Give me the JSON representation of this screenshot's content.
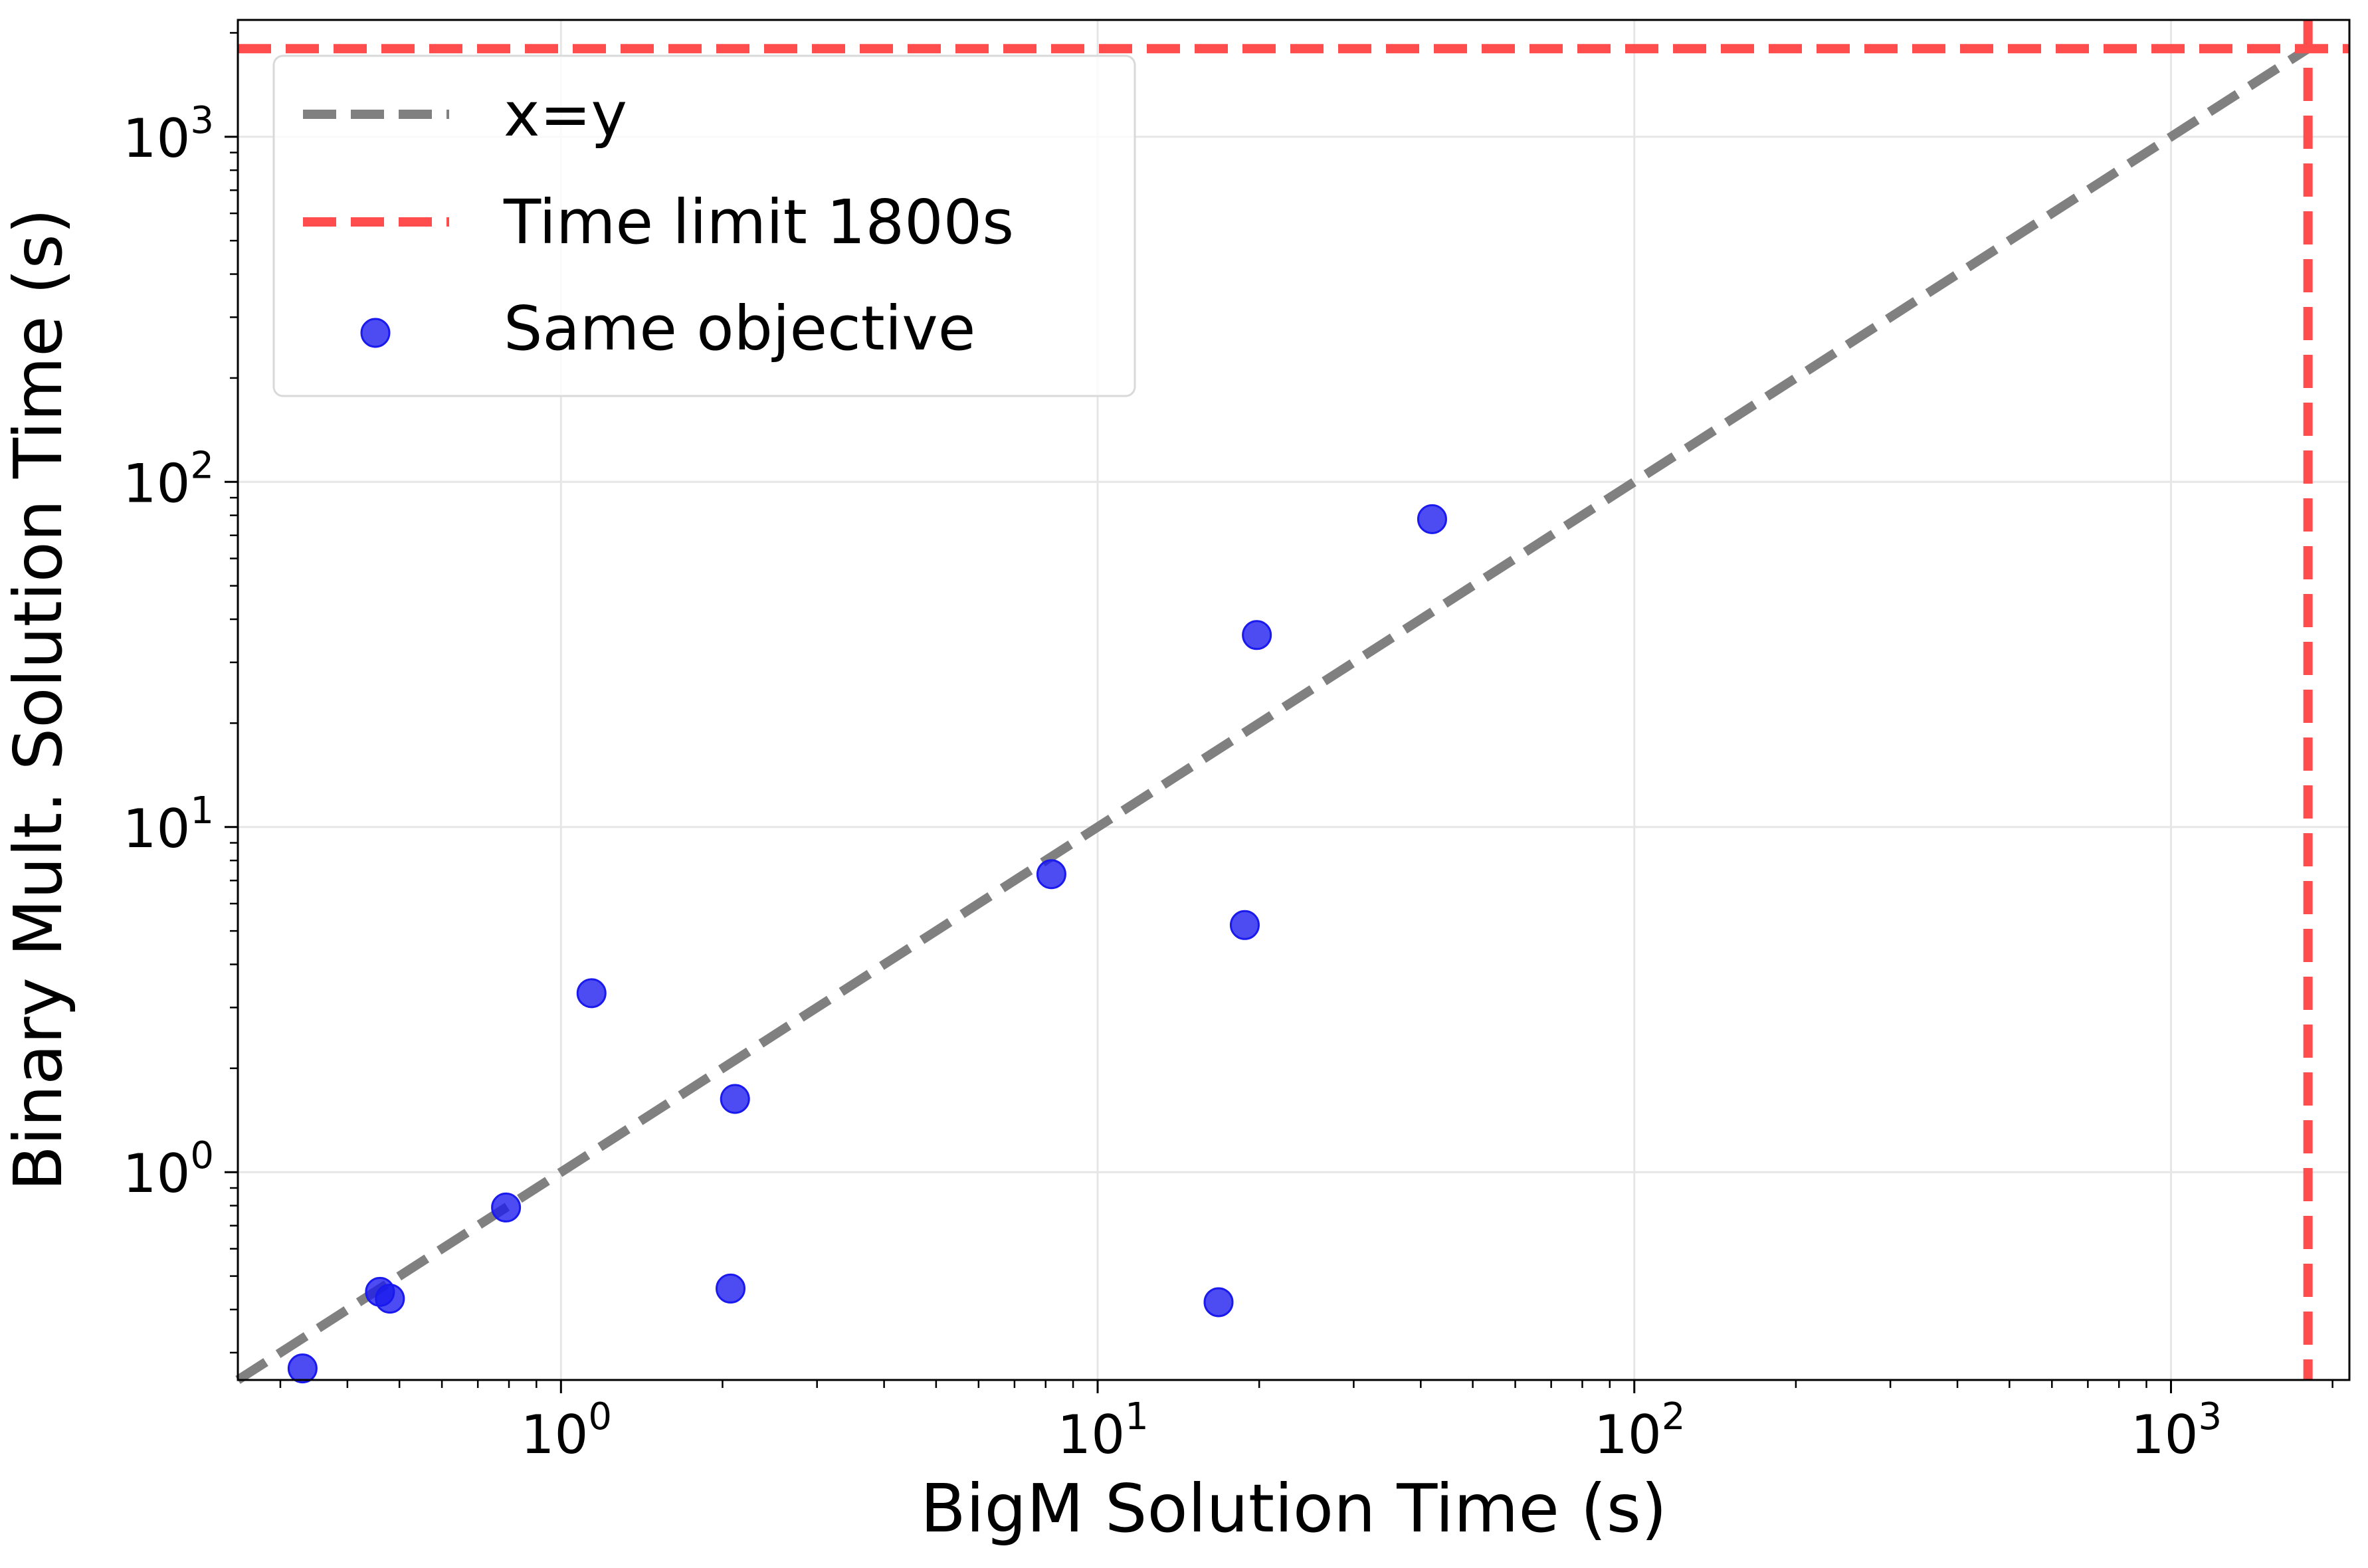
{
  "chart_data": {
    "type": "scatter",
    "xlabel": "BigM Solution Time (s)",
    "ylabel": "Binary Mult. Solution Time (s)",
    "xscale": "log",
    "yscale": "log",
    "xlim": [
      0.25,
      2150
    ],
    "ylim": [
      0.25,
      2180
    ],
    "grid": true,
    "legend_position": "top-left",
    "x_ticks": [
      {
        "value": 1,
        "base": "10",
        "exp": "0"
      },
      {
        "value": 10,
        "base": "10",
        "exp": "1"
      },
      {
        "value": 100,
        "base": "10",
        "exp": "2"
      },
      {
        "value": 1000,
        "base": "10",
        "exp": "3"
      }
    ],
    "y_ticks": [
      {
        "value": 1,
        "base": "10",
        "exp": "0"
      },
      {
        "value": 10,
        "base": "10",
        "exp": "1"
      },
      {
        "value": 100,
        "base": "10",
        "exp": "2"
      },
      {
        "value": 1000,
        "base": "10",
        "exp": "3"
      }
    ],
    "reference_lines": [
      {
        "kind": "identity",
        "label": "x=y",
        "color": "#808080"
      },
      {
        "kind": "limit",
        "value": 1800,
        "label": "Time limit 1800s",
        "color": "#ff4d4d"
      }
    ],
    "series": [
      {
        "name": "Same objective",
        "color": "#1a1aee",
        "points": [
          {
            "x": 0.33,
            "y": 0.27
          },
          {
            "x": 0.46,
            "y": 0.45
          },
          {
            "x": 0.48,
            "y": 0.43
          },
          {
            "x": 0.79,
            "y": 0.79
          },
          {
            "x": 1.14,
            "y": 3.3
          },
          {
            "x": 2.07,
            "y": 0.46
          },
          {
            "x": 2.11,
            "y": 1.63
          },
          {
            "x": 8.2,
            "y": 7.3
          },
          {
            "x": 16.8,
            "y": 0.42
          },
          {
            "x": 18.8,
            "y": 5.2
          },
          {
            "x": 19.8,
            "y": 36
          },
          {
            "x": 42,
            "y": 78
          }
        ]
      }
    ]
  }
}
